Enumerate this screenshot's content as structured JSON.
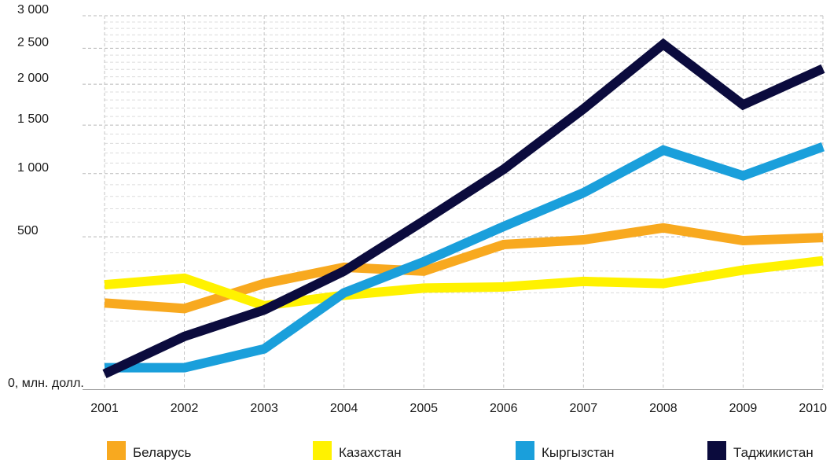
{
  "chart_data": {
    "type": "line",
    "title": "",
    "xlabel": "",
    "ylabel": "",
    "x": [
      "2001",
      "2002",
      "2003",
      "2004",
      "2005",
      "2006",
      "2007",
      "2008",
      "2009",
      "2010"
    ],
    "y_ticks": [
      0,
      500,
      1000,
      1500,
      2000,
      2500,
      3000
    ],
    "y_tick_labels": [
      "0, млн. долл.",
      "500",
      "1 000",
      "1 500",
      "2 000",
      "2 500",
      "3 000"
    ],
    "ylim": [
      0,
      3000
    ],
    "y_scale": "sqrt",
    "grid": true,
    "legend_position": "bottom",
    "series": [
      {
        "name": "Беларусь",
        "color": "#F8A91F",
        "values": [
          160,
          140,
          240,
          320,
          300,
          450,
          480,
          560,
          475,
          495
        ]
      },
      {
        "name": "Казахстан",
        "color": "#FFF200",
        "values": [
          235,
          265,
          150,
          190,
          220,
          225,
          250,
          240,
          305,
          355
        ]
      },
      {
        "name": "Кыргызстан",
        "color": "#1A9FDB",
        "values": [
          10,
          10,
          35,
          200,
          350,
          570,
          830,
          1230,
          980,
          1265
        ]
      },
      {
        "name": "Таджикистан",
        "color": "#0B0B3D",
        "values": [
          5,
          60,
          135,
          300,
          610,
          1040,
          1690,
          2560,
          1740,
          2210
        ]
      }
    ]
  }
}
